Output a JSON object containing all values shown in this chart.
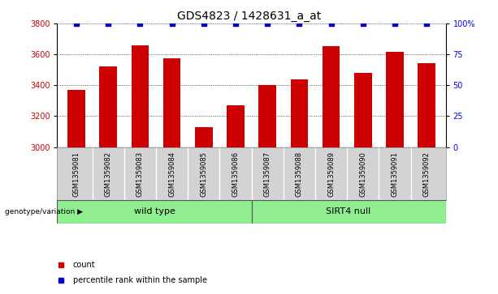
{
  "title": "GDS4823 / 1428631_a_at",
  "samples": [
    "GSM1359081",
    "GSM1359082",
    "GSM1359083",
    "GSM1359084",
    "GSM1359085",
    "GSM1359086",
    "GSM1359087",
    "GSM1359088",
    "GSM1359089",
    "GSM1359090",
    "GSM1359091",
    "GSM1359092"
  ],
  "counts": [
    3370,
    3520,
    3660,
    3575,
    3130,
    3270,
    3400,
    3440,
    3655,
    3480,
    3615,
    3545
  ],
  "bar_color": "#cc0000",
  "dot_color": "#0000cc",
  "ylim_left": [
    3000,
    3800
  ],
  "ylim_right": [
    0,
    100
  ],
  "yticks_left": [
    3000,
    3200,
    3400,
    3600,
    3800
  ],
  "yticks_right": [
    0,
    25,
    50,
    75,
    100
  ],
  "ytick_labels_right": [
    "0",
    "25",
    "50",
    "75",
    "100%"
  ],
  "group1_label": "wild type",
  "group2_label": "SIRT4 null",
  "group1_color": "#90ee90",
  "group2_color": "#90ee90",
  "genotype_label": "genotype/variation",
  "legend_count_label": "count",
  "legend_pct_label": "percentile rank within the sample",
  "sample_bg_color": "#d3d3d3",
  "plot_bg_color": "#ffffff",
  "title_fontsize": 10,
  "tick_fontsize": 7,
  "label_fontsize": 6,
  "group_fontsize": 8,
  "legend_fontsize": 7,
  "bar_width": 0.55,
  "dot_size": 14,
  "n_samples": 12,
  "n_group1": 6,
  "n_group2": 6
}
